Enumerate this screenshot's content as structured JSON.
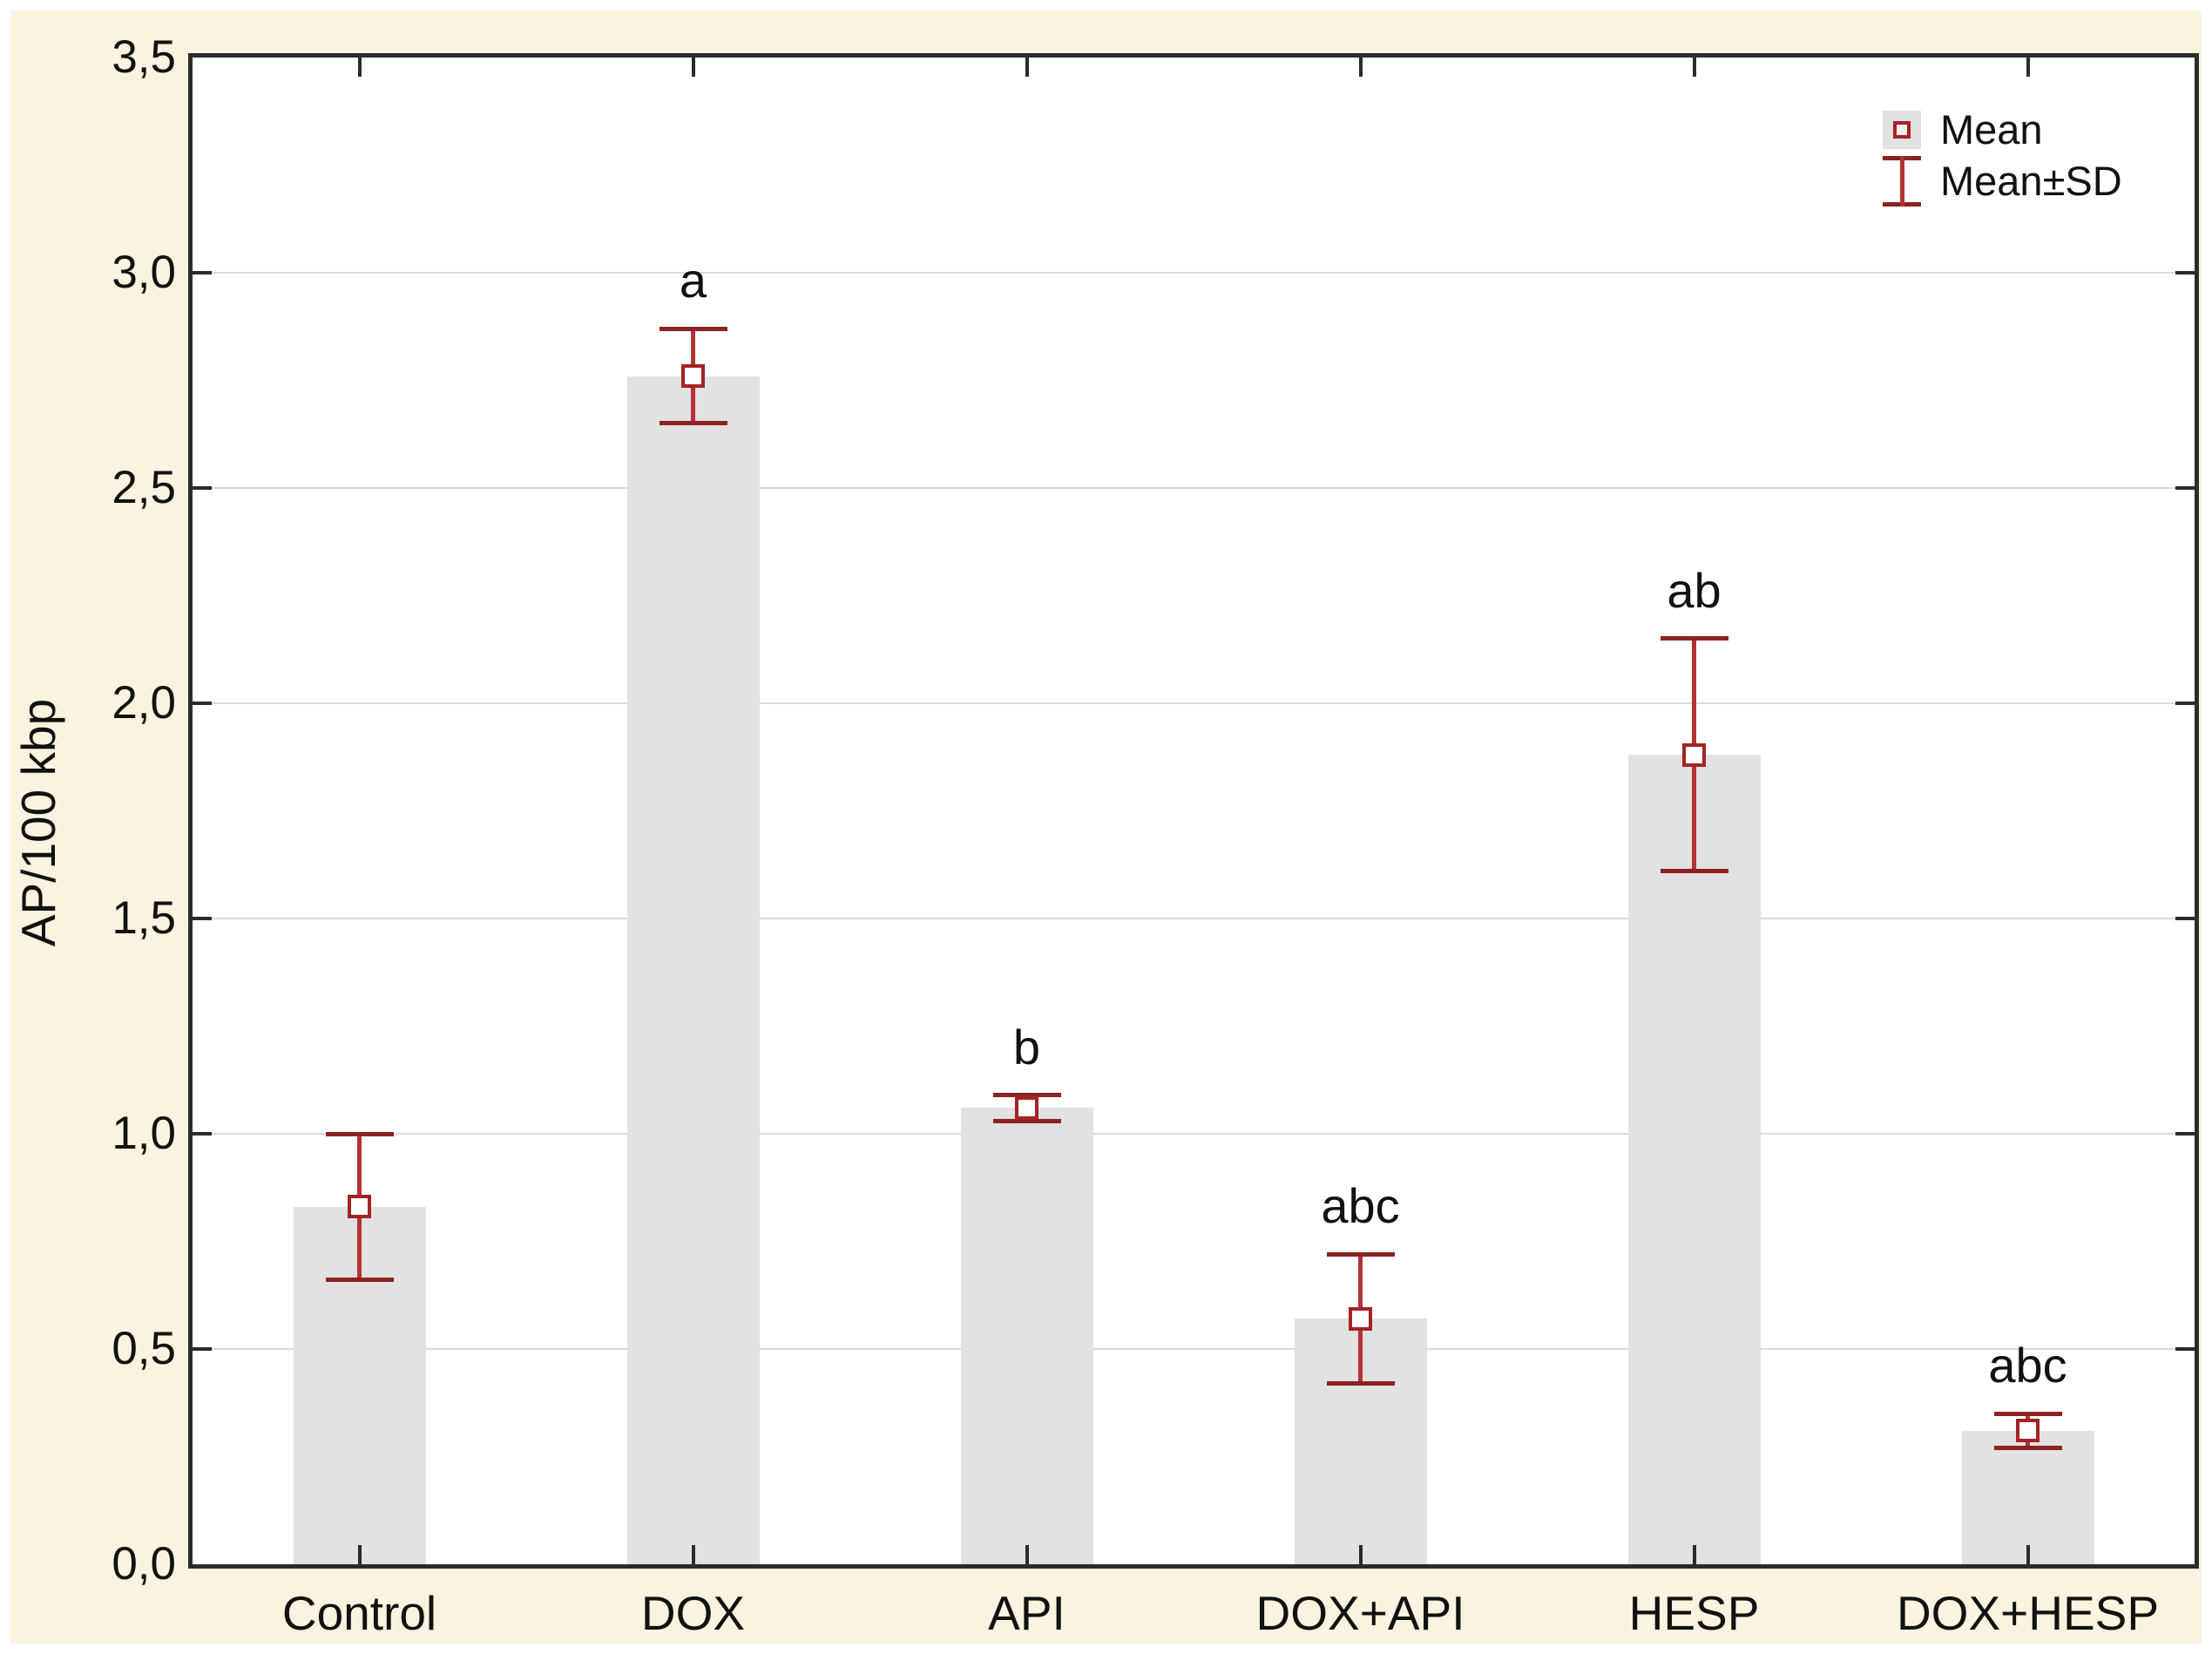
{
  "chart_data": {
    "type": "bar",
    "title": "",
    "xlabel": "",
    "ylabel": "AP/100 kbp",
    "ylim": [
      0,
      3.5
    ],
    "ytick_step": 0.5,
    "ytick_labels": [
      "0,0",
      "0,5",
      "1,0",
      "1,5",
      "2,0",
      "2,5",
      "3,0",
      "3,5"
    ],
    "categories": [
      "Control",
      "DOX",
      "API",
      "DOX+API",
      "HESP",
      "DOX+HESP"
    ],
    "series": [
      {
        "name": "Mean",
        "values": [
          0.83,
          2.76,
          1.06,
          0.57,
          1.88,
          0.31
        ]
      }
    ],
    "error_sd": [
      0.17,
      0.11,
      0.03,
      0.15,
      0.27,
      0.04
    ],
    "significance_letters": [
      "",
      "a",
      "b",
      "abc",
      "ab",
      "abc"
    ],
    "grid": true,
    "legend_position": "top-right",
    "legend": {
      "mean_label": "Mean",
      "sd_label": "Mean±SD"
    }
  },
  "colors": {
    "page_background": "#faf3e0",
    "plot_background": "#ffffff",
    "frame": "#2b2b2b",
    "gridline": "#d9d9d9",
    "bar_fill": "#e2e2e2",
    "error_stem": "#b43232",
    "error_cap": "#8c2222",
    "marker_border": "#a32424",
    "marker_fill": "#ffffff",
    "text": "#111111"
  }
}
